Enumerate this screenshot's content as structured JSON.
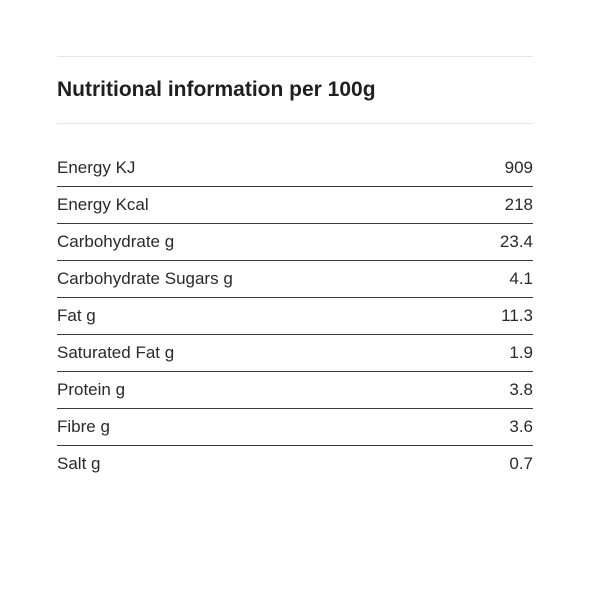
{
  "title": "Nutritional information per 100g",
  "rows": [
    {
      "label": "Energy KJ",
      "value": "909"
    },
    {
      "label": "Energy Kcal",
      "value": "218"
    },
    {
      "label": "Carbohydrate g",
      "value": "23.4"
    },
    {
      "label": "Carbohydrate Sugars g",
      "value": "4.1"
    },
    {
      "label": "Fat g",
      "value": "11.3"
    },
    {
      "label": "Saturated Fat g",
      "value": "1.9"
    },
    {
      "label": "Protein g",
      "value": "3.8"
    },
    {
      "label": "Fibre g",
      "value": "3.6"
    },
    {
      "label": "Salt g",
      "value": "0.7"
    }
  ]
}
